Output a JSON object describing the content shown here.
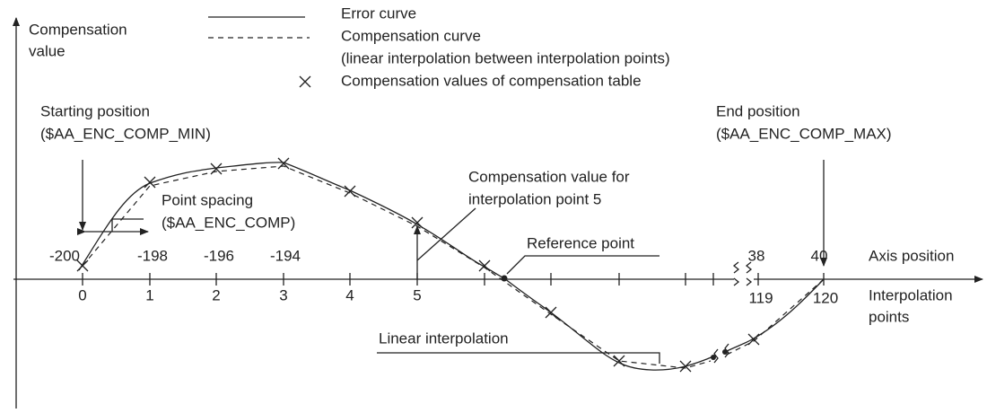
{
  "y_axis_label": [
    "Compensation",
    "value"
  ],
  "legend": [
    {
      "label": "Error curve"
    },
    {
      "label": "Compensation curve",
      "note": "(linear interpolation between interpolation points)"
    },
    {
      "label": "Compensation values of compensation table"
    }
  ],
  "starting_position": [
    "Starting position",
    "($AA_ENC_COMP_MIN)"
  ],
  "end_position": [
    "End position",
    "($AA_ENC_COMP_MAX)"
  ],
  "point_spacing": [
    "Point spacing",
    "($AA_ENC_COMP)"
  ],
  "compensation_value_note": [
    "Compensation value for",
    "interpolation point 5"
  ],
  "reference_point": "Reference point",
  "linear_interpolation": "Linear interpolation",
  "axis_position_label": "Axis position",
  "axis_positions": [
    "-200",
    "-198",
    "-196",
    "-194",
    "38",
    "40"
  ],
  "interpolation_points_label": [
    "Interpolation",
    "points"
  ],
  "interpolation_points": [
    "0",
    "1",
    "2",
    "3",
    "4",
    "5",
    "119",
    "120"
  ]
}
